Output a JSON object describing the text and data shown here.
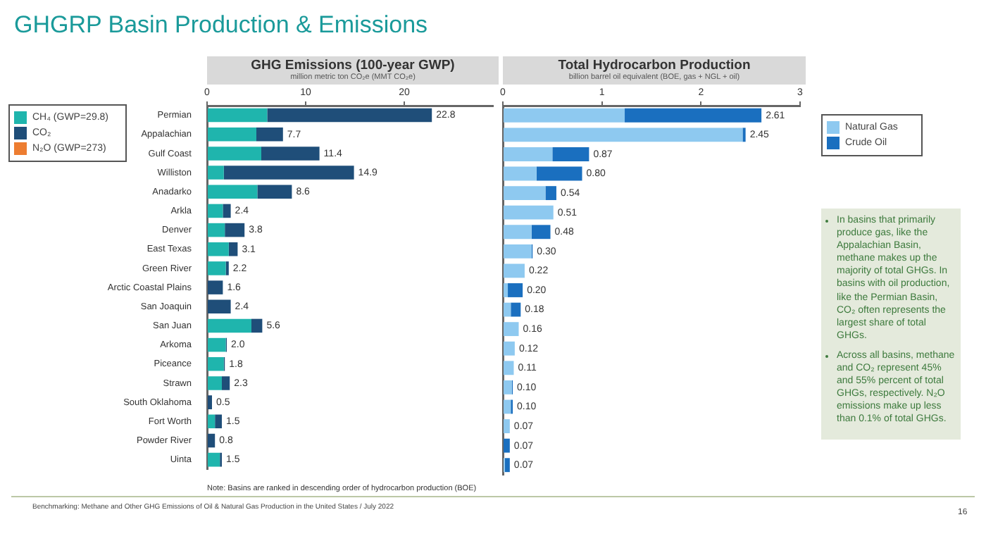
{
  "chart_data": [
    {
      "type": "bar",
      "orientation": "horizontal",
      "stacked": true,
      "title": "GHG Emissions (100-year GWP)",
      "subtitle": "million metric ton CO₂e (MMT CO₂e)",
      "categories": [
        "Permian",
        "Appalachian",
        "Gulf Coast",
        "Williston",
        "Anadarko",
        "Arkla",
        "Denver",
        "East Texas",
        "Green River",
        "Arctic Coastal Plains",
        "San Joaquin",
        "San Juan",
        "Arkoma",
        "Piceance",
        "Strawn",
        "South Oklahoma",
        "Fort Worth",
        "Powder River",
        "Uinta"
      ],
      "series": [
        {
          "name": "CH₄ (GWP=29.8)",
          "color": "#1fb5ad",
          "values": [
            6.1,
            5.0,
            5.5,
            1.7,
            5.1,
            1.6,
            1.8,
            2.2,
            1.9,
            0,
            0,
            4.5,
            1.9,
            1.7,
            1.5,
            0,
            0.8,
            0,
            1.3
          ]
        },
        {
          "name": "CO₂",
          "color": "#1f4e79",
          "values": [
            16.7,
            2.7,
            5.9,
            13.2,
            3.5,
            0.8,
            2.0,
            0.9,
            0.3,
            1.6,
            2.4,
            1.1,
            0.1,
            0.1,
            0.8,
            0.5,
            0.7,
            0.8,
            0.2
          ]
        },
        {
          "name": "N₂O (GWP=273)",
          "color": "#ed7d31",
          "values": [
            0,
            0,
            0,
            0,
            0,
            0,
            0,
            0,
            0,
            0,
            0,
            0,
            0,
            0,
            0,
            0,
            0,
            0,
            0
          ]
        }
      ],
      "totals": [
        "22.8",
        "7.7",
        "11.4",
        "14.9",
        "8.6",
        "2.4",
        "3.8",
        "3.1",
        "2.2",
        "1.6",
        "2.4",
        "5.6",
        "2.0",
        "1.8",
        "2.3",
        "0.5",
        "1.5",
        "0.8",
        "1.5"
      ],
      "xlim": [
        0,
        29
      ],
      "xticks": [
        0,
        10,
        20
      ],
      "grid": false,
      "legend": "left",
      "annotations": [
        "GHGRP Basin Production & Emissions",
        "Note: Basins are ranked in descending order of hydrocarbon production (BOE)",
        "Benchmarking: Methane and Other GHG Emissions of Oil & Natural Gas Production in the United States / July 2022",
        "16"
      ]
    },
    {
      "type": "bar",
      "orientation": "horizontal",
      "stacked": true,
      "title": "Total Hydrocarbon Production",
      "subtitle": "billion barrel oil equivalent (BOE, gas + NGL + oil)",
      "categories": [
        null,
        null,
        null,
        null,
        null,
        null,
        null,
        null,
        null,
        null,
        null,
        null,
        null,
        null,
        null,
        null,
        null,
        null,
        null
      ],
      "series": [
        {
          "name": "Natural Gas",
          "color": "#8ec9f0",
          "values": [
            1.23,
            2.42,
            0.5,
            0.34,
            0.43,
            0.51,
            0.29,
            0.29,
            0.22,
            0.05,
            0.08,
            0.16,
            0.12,
            0.11,
            0.09,
            0.08,
            0.07,
            0,
            0.02
          ]
        },
        {
          "name": "Crude Oil",
          "color": "#1a6fbf",
          "values": [
            1.38,
            0.03,
            0.37,
            0.46,
            0.11,
            0,
            0.19,
            0.01,
            0,
            0.15,
            0.1,
            0,
            0,
            0,
            0.01,
            0.02,
            0,
            0.07,
            0.05
          ]
        }
      ],
      "totals": [
        "2.61",
        "2.45",
        "0.87",
        "0.80",
        "0.54",
        "0.51",
        "0.48",
        "0.30",
        "0.22",
        "0.20",
        "0.18",
        "0.16",
        "0.12",
        "0.11",
        "0.10",
        "0.10",
        "0.07",
        "0.07",
        "0.07"
      ],
      "xlim": [
        0,
        3
      ],
      "xticks": [
        0,
        1,
        2,
        3
      ],
      "grid": false,
      "legend": "right",
      "tick_labels": "x",
      "annotations": [
        "In basins that primarily produce gas, like the Appalachian Basin, methane makes up the majority of total GHGs. In basins with oil production, like the Permian Basin, CO₂ often represents the largest share of total GHGs.",
        "Across all basins, methane and CO₂ represent 45% and 55% percent of total GHGs, respectively. N₂O emissions make up less than 0.1% of total GHGs."
      ]
    }
  ]
}
